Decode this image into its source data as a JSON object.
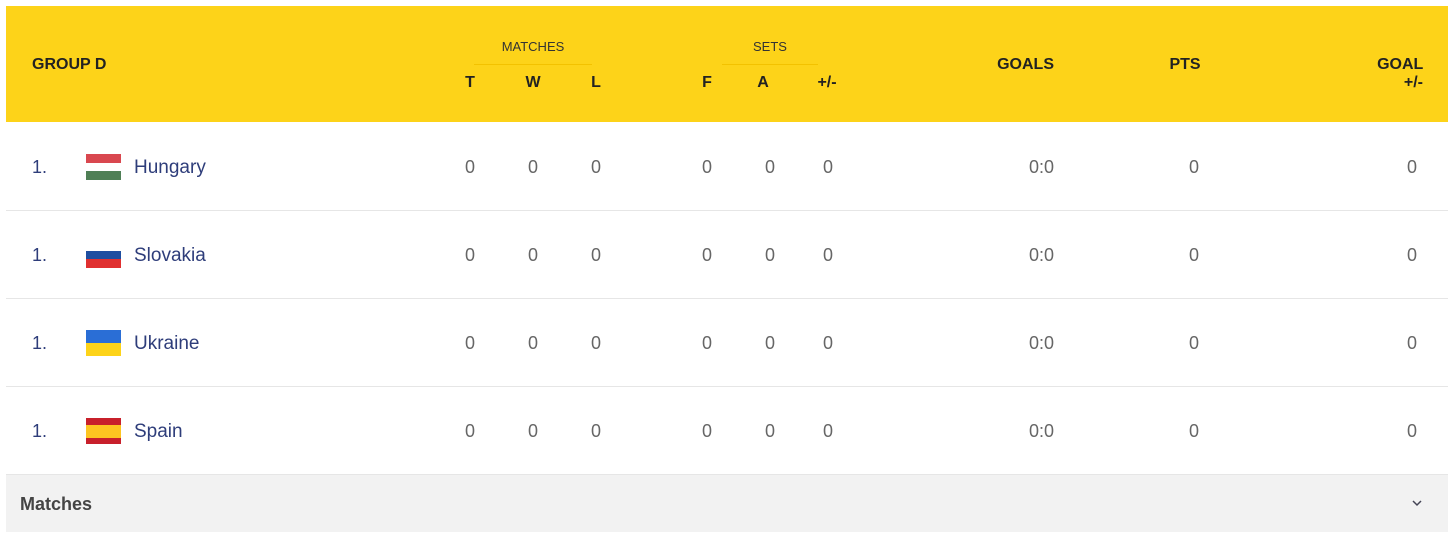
{
  "header": {
    "group": "GROUP D",
    "matches_label": "MATCHES",
    "sets_label": "SETS",
    "cols": {
      "t": "T",
      "w": "W",
      "l": "L",
      "f": "F",
      "a": "A",
      "diff": "+/-",
      "goals": "GOALS",
      "pts": "PTS",
      "goal_diff": "GOAL +/-"
    }
  },
  "accent_color": "#fdd319",
  "rows": [
    {
      "rank": "1.",
      "team": "Hungary",
      "flag": "hungary-flag-icon",
      "t": "0",
      "w": "0",
      "l": "0",
      "f": "0",
      "a": "0",
      "diff": "0",
      "goals": "0:0",
      "pts": "0",
      "goal_diff": "0"
    },
    {
      "rank": "1.",
      "team": "Slovakia",
      "flag": "slovakia-flag-icon",
      "t": "0",
      "w": "0",
      "l": "0",
      "f": "0",
      "a": "0",
      "diff": "0",
      "goals": "0:0",
      "pts": "0",
      "goal_diff": "0"
    },
    {
      "rank": "1.",
      "team": "Ukraine",
      "flag": "ukraine-flag-icon",
      "t": "0",
      "w": "0",
      "l": "0",
      "f": "0",
      "a": "0",
      "diff": "0",
      "goals": "0:0",
      "pts": "0",
      "goal_diff": "0"
    },
    {
      "rank": "1.",
      "team": "Spain",
      "flag": "spain-flag-icon",
      "t": "0",
      "w": "0",
      "l": "0",
      "f": "0",
      "a": "0",
      "diff": "0",
      "goals": "0:0",
      "pts": "0",
      "goal_diff": "0"
    }
  ],
  "footer": {
    "label": "Matches",
    "icon": "chevron-down-icon"
  }
}
